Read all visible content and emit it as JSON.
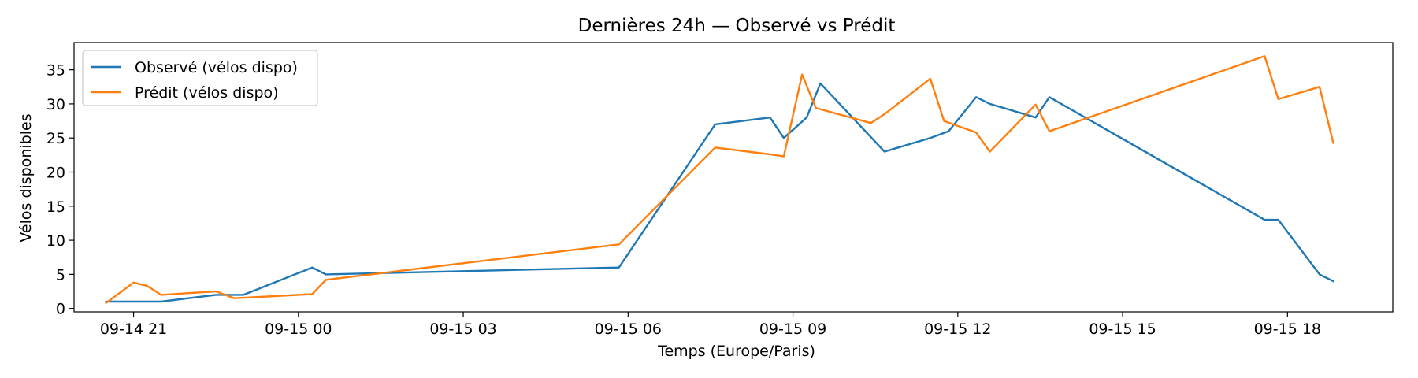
{
  "chart_data": {
    "type": "line",
    "title": "Dernières 24h — Observé vs Prédit",
    "xlabel": "Temps (Europe/Paris)",
    "ylabel": "Vélos disponibles",
    "ylim": [
      -0.5,
      39
    ],
    "yticks": [
      0,
      5,
      10,
      15,
      20,
      25,
      30,
      35
    ],
    "x_axis": {
      "kind": "time",
      "range": [
        "2025-09-14T19:55",
        "2025-09-15T19:55"
      ],
      "ticks": [
        {
          "t": "2025-09-14T21:00",
          "label": "09-14 21"
        },
        {
          "t": "2025-09-15T00:00",
          "label": "09-15 00"
        },
        {
          "t": "2025-09-15T03:00",
          "label": "09-15 03"
        },
        {
          "t": "2025-09-15T06:00",
          "label": "09-15 06"
        },
        {
          "t": "2025-09-15T09:00",
          "label": "09-15 09"
        },
        {
          "t": "2025-09-15T12:00",
          "label": "09-15 12"
        },
        {
          "t": "2025-09-15T15:00",
          "label": "09-15 15"
        },
        {
          "t": "2025-09-15T18:00",
          "label": "09-15 18"
        }
      ]
    },
    "grid": false,
    "legend_position": "top-left",
    "series": [
      {
        "name": "Observé (vélos dispo)",
        "color": "#1f77b4",
        "points": [
          {
            "t": "2025-09-14T20:30",
            "y": 1
          },
          {
            "t": "2025-09-14T21:30",
            "y": 1
          },
          {
            "t": "2025-09-14T22:30",
            "y": 2
          },
          {
            "t": "2025-09-14T23:00",
            "y": 2
          },
          {
            "t": "2025-09-15T00:15",
            "y": 6
          },
          {
            "t": "2025-09-15T00:30",
            "y": 5
          },
          {
            "t": "2025-09-15T05:50",
            "y": 6
          },
          {
            "t": "2025-09-15T07:35",
            "y": 27
          },
          {
            "t": "2025-09-15T08:35",
            "y": 28
          },
          {
            "t": "2025-09-15T08:50",
            "y": 25
          },
          {
            "t": "2025-09-15T09:15",
            "y": 28
          },
          {
            "t": "2025-09-15T09:30",
            "y": 33
          },
          {
            "t": "2025-09-15T10:40",
            "y": 23
          },
          {
            "t": "2025-09-15T11:30",
            "y": 25
          },
          {
            "t": "2025-09-15T11:50",
            "y": 26
          },
          {
            "t": "2025-09-15T12:20",
            "y": 31
          },
          {
            "t": "2025-09-15T12:35",
            "y": 30
          },
          {
            "t": "2025-09-15T13:25",
            "y": 28
          },
          {
            "t": "2025-09-15T13:40",
            "y": 31
          },
          {
            "t": "2025-09-15T17:35",
            "y": 13
          },
          {
            "t": "2025-09-15T17:50",
            "y": 13
          },
          {
            "t": "2025-09-15T18:35",
            "y": 5
          },
          {
            "t": "2025-09-15T18:50",
            "y": 4
          }
        ]
      },
      {
        "name": "Prédit (vélos dispo)",
        "color": "#ff7f0e",
        "points": [
          {
            "t": "2025-09-14T20:30",
            "y": 0.8
          },
          {
            "t": "2025-09-14T21:00",
            "y": 3.8
          },
          {
            "t": "2025-09-14T21:15",
            "y": 3.3
          },
          {
            "t": "2025-09-14T21:30",
            "y": 2.0
          },
          {
            "t": "2025-09-14T22:30",
            "y": 2.5
          },
          {
            "t": "2025-09-14T22:50",
            "y": 1.5
          },
          {
            "t": "2025-09-15T00:15",
            "y": 2.1
          },
          {
            "t": "2025-09-15T00:30",
            "y": 4.2
          },
          {
            "t": "2025-09-15T05:50",
            "y": 9.4
          },
          {
            "t": "2025-09-15T07:35",
            "y": 23.6
          },
          {
            "t": "2025-09-15T08:35",
            "y": 22.6
          },
          {
            "t": "2025-09-15T08:50",
            "y": 22.3
          },
          {
            "t": "2025-09-15T09:10",
            "y": 34.3
          },
          {
            "t": "2025-09-15T09:25",
            "y": 29.4
          },
          {
            "t": "2025-09-15T10:25",
            "y": 27.2
          },
          {
            "t": "2025-09-15T10:40",
            "y": 28.5
          },
          {
            "t": "2025-09-15T11:30",
            "y": 33.7
          },
          {
            "t": "2025-09-15T11:45",
            "y": 27.5
          },
          {
            "t": "2025-09-15T12:20",
            "y": 25.8
          },
          {
            "t": "2025-09-15T12:35",
            "y": 23.0
          },
          {
            "t": "2025-09-15T13:25",
            "y": 29.9
          },
          {
            "t": "2025-09-15T13:40",
            "y": 26.0
          },
          {
            "t": "2025-09-15T17:35",
            "y": 37.0
          },
          {
            "t": "2025-09-15T17:50",
            "y": 30.7
          },
          {
            "t": "2025-09-15T18:35",
            "y": 32.5
          },
          {
            "t": "2025-09-15T18:50",
            "y": 24.3
          }
        ]
      }
    ]
  }
}
